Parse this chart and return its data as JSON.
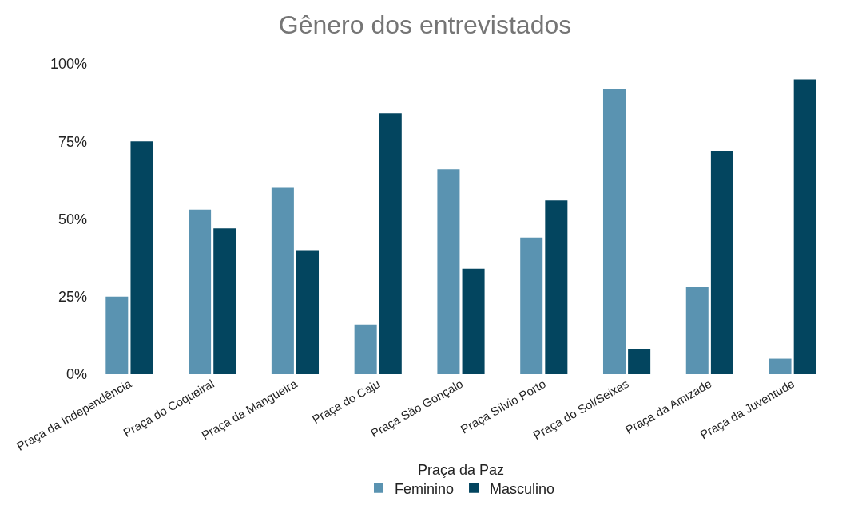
{
  "chart_data": {
    "type": "bar",
    "title": "Gênero dos entrevistados",
    "xlabel": "Praça da Paz",
    "categories": [
      "Praça da Independência",
      "Praça do Coqueiral",
      "Praça da Mangueira",
      "Praça do Caju",
      "Praça São Gonçalo",
      "Praça Sílvio Porto",
      "Praça do Sol/Seixas",
      "Praça da Amizade",
      "Praça da Juventude"
    ],
    "series": [
      {
        "name": "Feminino",
        "color": "#5a93b1",
        "values": [
          25,
          53,
          60,
          16,
          66,
          44,
          92,
          28,
          5
        ]
      },
      {
        "name": "Masculino",
        "color": "#03455f",
        "values": [
          75,
          47,
          40,
          84,
          34,
          56,
          8,
          72,
          95
        ]
      }
    ],
    "ylim": [
      0,
      100
    ],
    "yticks": [
      {
        "value": 0,
        "label": "0%"
      },
      {
        "value": 25,
        "label": "25%"
      },
      {
        "value": 50,
        "label": "50%"
      },
      {
        "value": 75,
        "label": "75%"
      },
      {
        "value": 100,
        "label": "100%"
      }
    ],
    "grid": false,
    "legend": "bottom"
  }
}
